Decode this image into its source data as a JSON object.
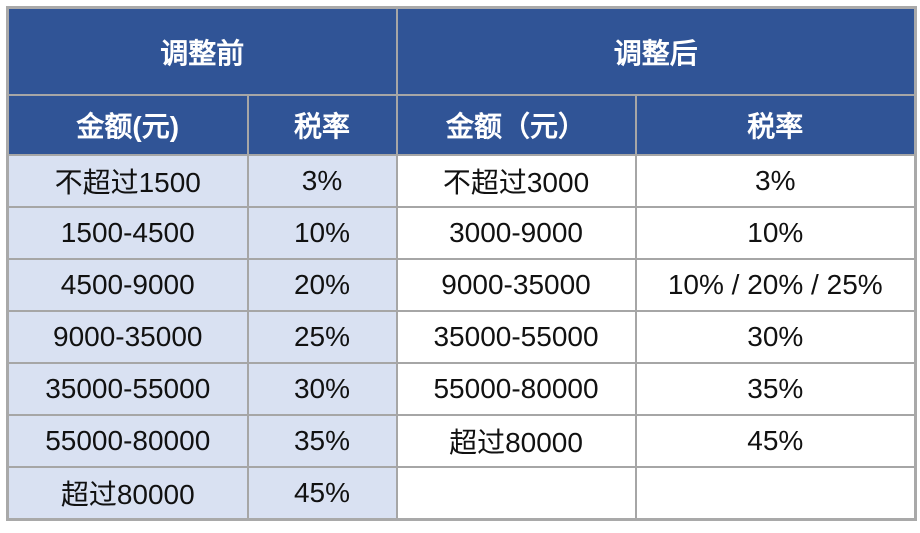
{
  "headers": {
    "before": "调整前",
    "after": "调整后",
    "before_amount": "金额(元)",
    "before_rate": "税率",
    "after_amount": "金额（元）",
    "after_rate": "税率"
  },
  "rows": [
    {
      "before_amount": "不超过1500",
      "before_rate": "3%",
      "after_amount": "不超过3000",
      "after_rate": "3%"
    },
    {
      "before_amount": "1500-4500",
      "before_rate": "10%",
      "after_amount": "3000-9000",
      "after_rate": "10%"
    },
    {
      "before_amount": "4500-9000",
      "before_rate": "20%",
      "after_amount": "9000-35000",
      "after_rate": "10% / 20% / 25%"
    },
    {
      "before_amount": "9000-35000",
      "before_rate": "25%",
      "after_amount": "35000-55000",
      "after_rate": "30%"
    },
    {
      "before_amount": "35000-55000",
      "before_rate": "30%",
      "after_amount": "55000-80000",
      "after_rate": "35%"
    },
    {
      "before_amount": "55000-80000",
      "before_rate": "35%",
      "after_amount": "超过80000",
      "after_rate": "45%"
    },
    {
      "before_amount": "超过80000",
      "before_rate": "45%",
      "after_amount": "",
      "after_rate": ""
    }
  ],
  "colors": {
    "header": "#305496",
    "before_cells": "#d9e1f2",
    "after_cells": "#ffffff",
    "border": "#a6a6a6"
  }
}
